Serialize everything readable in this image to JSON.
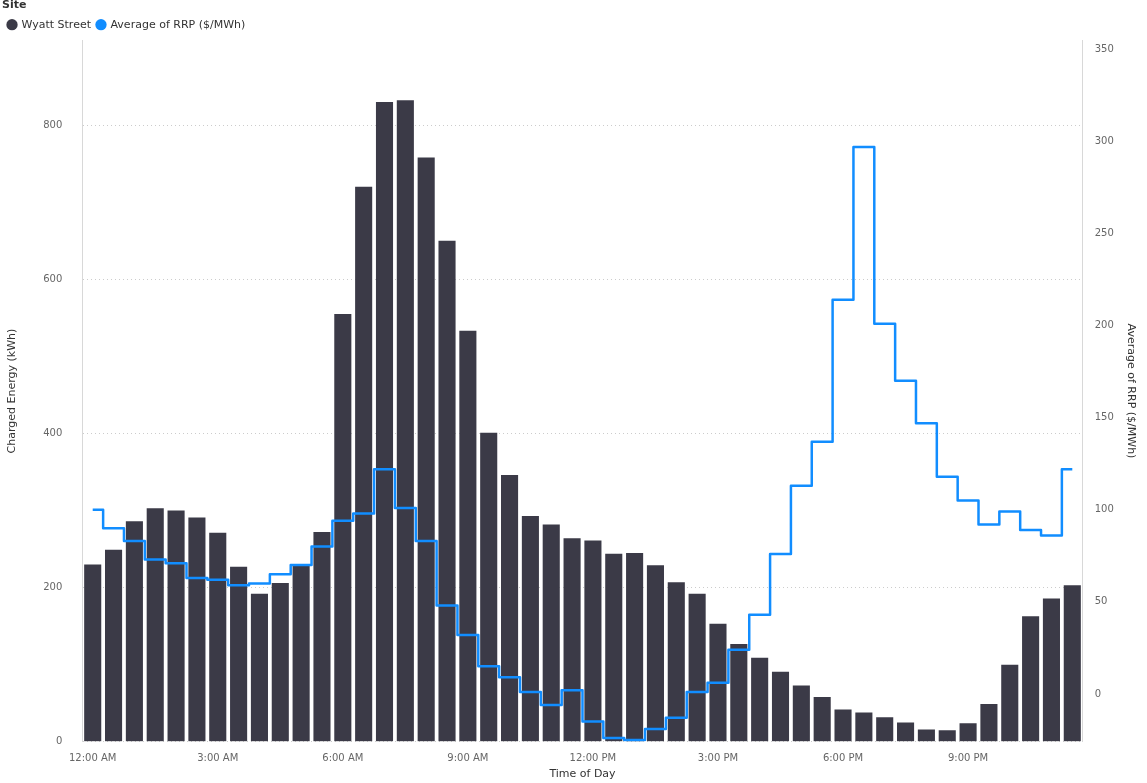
{
  "chart_data": {
    "type": "bar",
    "legend_title": "Site",
    "legend": "top left",
    "xlabel": "Time of Day",
    "ylabel": "Charged Energy (kWh)",
    "y2label": "Average of RRP ($/MWh)",
    "categories": [
      "12:00 AM",
      null,
      null,
      null,
      null,
      null,
      "3:00 AM",
      null,
      null,
      null,
      null,
      null,
      "6:00 AM",
      null,
      null,
      null,
      null,
      null,
      "9:00 AM",
      null,
      null,
      null,
      null,
      null,
      "12:00 PM",
      null,
      null,
      null,
      null,
      null,
      "3:00 PM",
      null,
      null,
      null,
      null,
      null,
      "6:00 PM",
      null,
      null,
      null,
      null,
      null,
      "9:00 PM",
      null,
      null,
      null,
      null,
      null
    ],
    "series": [
      {
        "name": "Wyatt Street",
        "color": "#3b3a47",
        "values": [
          230,
          249,
          286,
          303,
          300,
          291,
          271,
          227,
          192,
          206,
          229,
          272,
          555,
          720,
          830,
          832,
          758,
          650,
          533,
          401,
          346,
          293,
          282,
          264,
          261,
          244,
          245,
          229,
          207,
          192,
          153,
          127,
          109,
          91,
          73,
          58,
          42,
          38,
          32,
          25,
          16,
          15,
          24,
          49,
          100,
          163,
          186,
          203
        ]
      },
      {
        "name": "Average of RRP ($/MWh)",
        "type": "step",
        "axis": "y2",
        "color": "#118dff",
        "values": [
          100,
          90,
          83,
          73,
          71,
          63,
          62,
          59,
          60,
          65,
          70,
          80,
          94,
          98,
          122,
          101,
          83,
          48,
          32,
          15,
          9,
          1,
          -6,
          2,
          -15,
          -24,
          -25,
          -19,
          -13,
          1,
          6,
          24,
          43,
          76,
          113,
          137,
          214,
          297,
          201,
          170,
          147,
          118,
          105,
          92,
          99,
          89,
          86,
          122
        ]
      }
    ],
    "ylim": [
      0,
      910
    ],
    "yticks": [
      0,
      200,
      400,
      600,
      800
    ],
    "y2lim": [
      -26,
      355
    ],
    "y2ticks": [
      0,
      50,
      100,
      150,
      200,
      250,
      300,
      350
    ],
    "grid": "y"
  }
}
